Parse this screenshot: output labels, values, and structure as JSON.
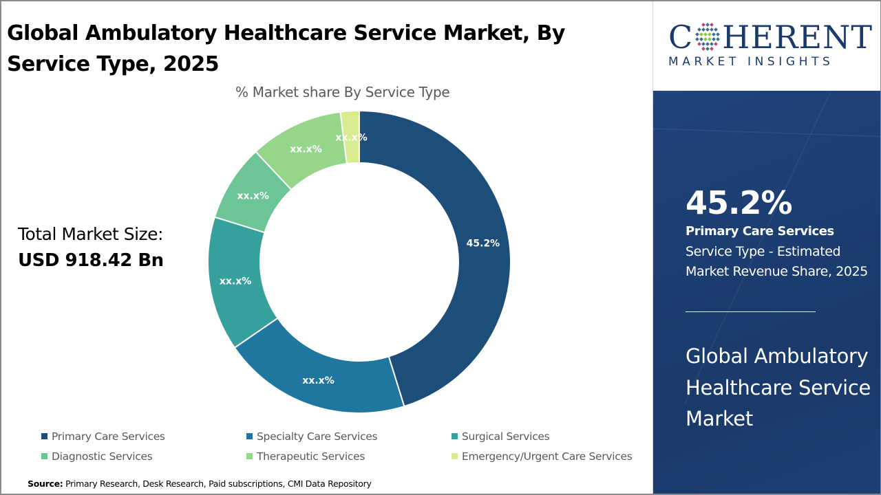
{
  "title": "Global Ambulatory Healthcare Service Market, By Service Type, 2025",
  "subtitle": "% Market share By Service Type",
  "market_size": {
    "label": "Total Market Size:",
    "value": "USD 918.42 Bn"
  },
  "source": {
    "label": "Source:",
    "text": " Primary Research, Desk Research, Paid subscriptions, CMI Data Repository"
  },
  "logo": {
    "main_left": "C",
    "main_right": "HERENT",
    "sub": "MARKET INSIGHTS",
    "icon": "globe-dots-icon"
  },
  "highlight": {
    "value": "45.2%",
    "category": "Primary Care Services",
    "description": "Service Type - Estimated Market Revenue Share, 2025",
    "market_name": "Global Ambulatory Healthcare Service Market"
  },
  "colors": {
    "brand_navy": "#1b3a6b",
    "panel_bg": "#1c3d70"
  },
  "chart_data": {
    "type": "pie",
    "variant": "donut",
    "title": "% Market share By Service Type",
    "categories": [
      "Primary Care Services",
      "Specialty Care Services",
      "Surgical Services",
      "Diagnostic Services",
      "Therapeutic Services",
      "Emergency/Urgent Care Services"
    ],
    "values": [
      45.2,
      20.2,
      14.4,
      8.2,
      10.0,
      2.0
    ],
    "data_labels": [
      "45.2%",
      "xx.x%",
      "xx.x%",
      "xx.x%",
      "xx.x%",
      "xx.x%"
    ],
    "colors": [
      "#1d4e79",
      "#1f77a0",
      "#36a09c",
      "#6cc497",
      "#95d68a",
      "#d8eb8f"
    ],
    "start_angle": "12 o'clock, clockwise",
    "legend_position": "bottom"
  }
}
